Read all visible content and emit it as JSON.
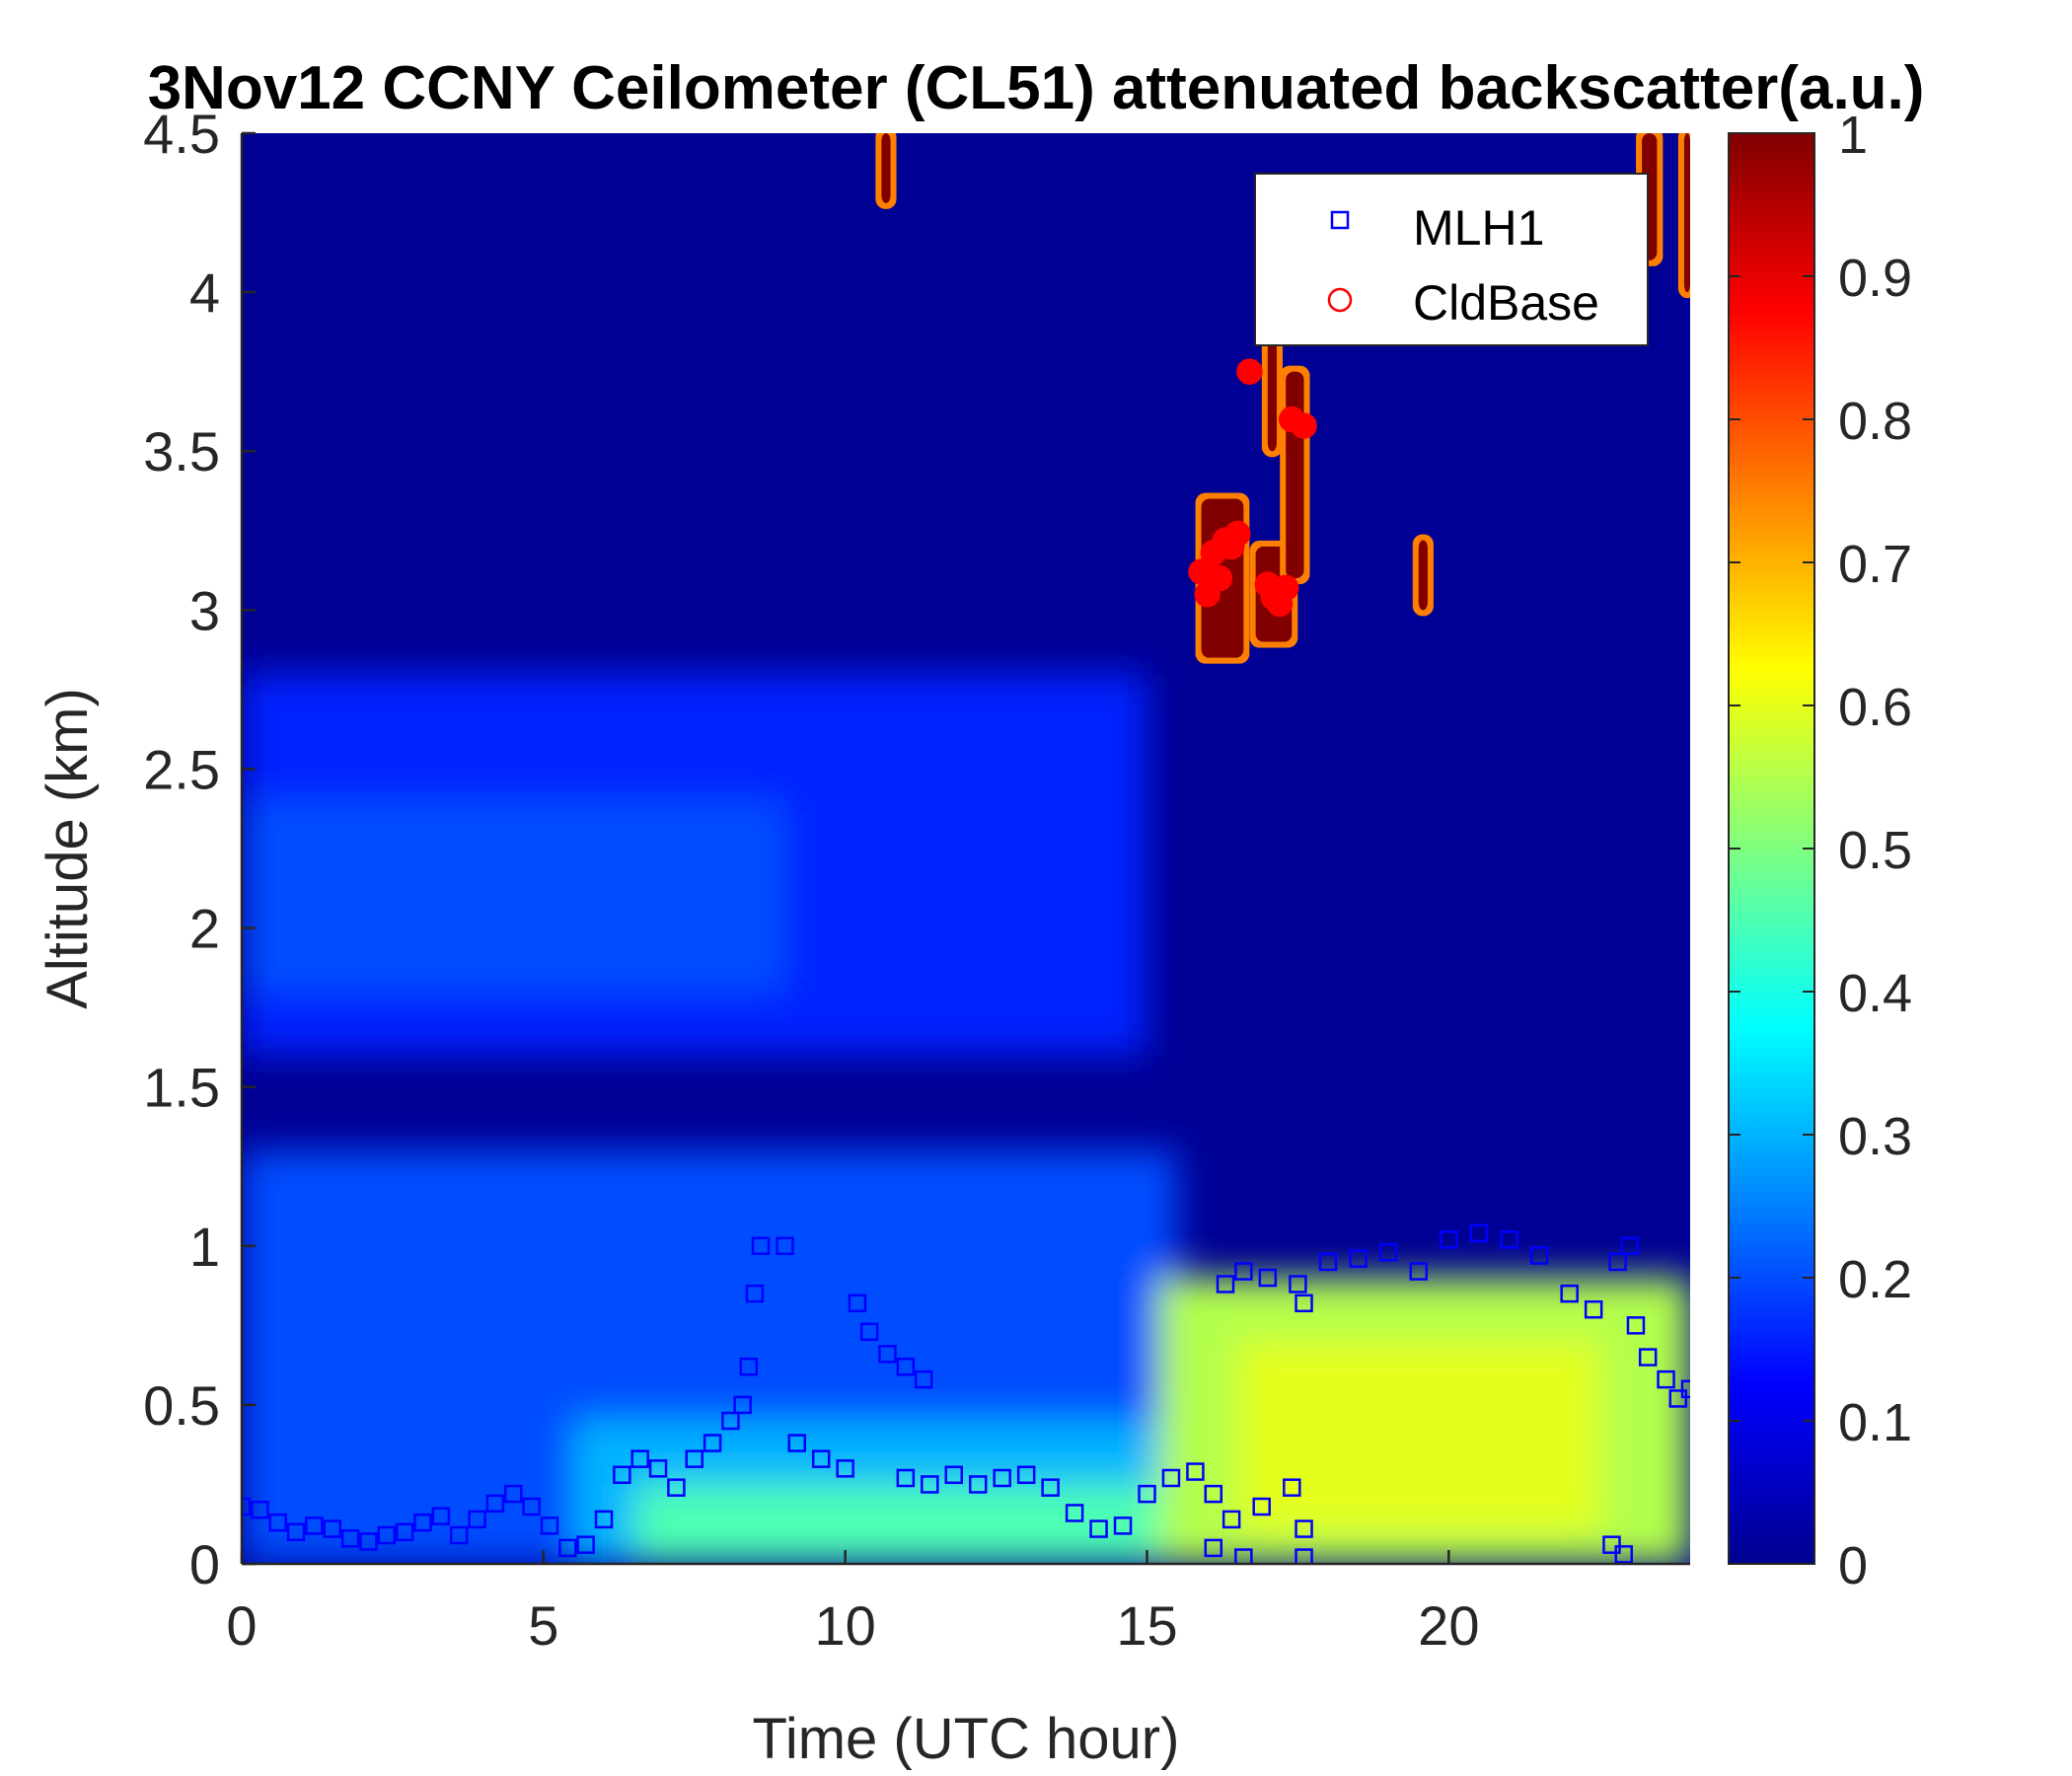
{
  "chart_data": {
    "type": "heatmap",
    "title": "3Nov12 CCNY Ceilometer (CL51) attenuated backscatter(a.u.)",
    "xlabel": "Time (UTC hour)",
    "ylabel": "Altitude (km)",
    "xlim": [
      0,
      24
    ],
    "ylim": [
      0,
      4.5
    ],
    "xticks": [
      0,
      5,
      10,
      15,
      20
    ],
    "yticks": [
      0,
      0.5,
      1,
      1.5,
      2,
      2.5,
      3,
      3.5,
      4,
      4.5
    ],
    "colorbar": {
      "colormap": "jet",
      "clim": [
        0,
        1
      ],
      "ticks": [
        0,
        0.1,
        0.2,
        0.3,
        0.4,
        0.5,
        0.6,
        0.7,
        0.8,
        0.9,
        1
      ]
    },
    "legend": {
      "placement": "top-right",
      "entries": [
        "MLH1",
        "CldBase"
      ]
    },
    "backscatter_field_description_values": {
      "low_layer_value_day": 0.55,
      "low_layer_value_night": 0.3,
      "residual_layer_value": 0.2,
      "free_troposphere_value": 0.02,
      "cloud_value": 1.0
    },
    "series": [
      {
        "name": "MLH1",
        "marker": "square",
        "color": "#0000ff",
        "points": [
          [
            0.0,
            0.18
          ],
          [
            0.3,
            0.17
          ],
          [
            0.6,
            0.13
          ],
          [
            0.9,
            0.1
          ],
          [
            1.2,
            0.12
          ],
          [
            1.5,
            0.11
          ],
          [
            1.8,
            0.08
          ],
          [
            2.1,
            0.07
          ],
          [
            2.4,
            0.09
          ],
          [
            2.7,
            0.1
          ],
          [
            3.0,
            0.13
          ],
          [
            3.3,
            0.15
          ],
          [
            3.6,
            0.09
          ],
          [
            3.9,
            0.14
          ],
          [
            4.2,
            0.19
          ],
          [
            4.5,
            0.22
          ],
          [
            4.8,
            0.18
          ],
          [
            5.1,
            0.12
          ],
          [
            5.4,
            0.05
          ],
          [
            5.7,
            0.06
          ],
          [
            6.0,
            0.14
          ],
          [
            6.3,
            0.28
          ],
          [
            6.6,
            0.33
          ],
          [
            6.9,
            0.3
          ],
          [
            7.2,
            0.24
          ],
          [
            7.5,
            0.33
          ],
          [
            7.8,
            0.38
          ],
          [
            8.1,
            0.45
          ],
          [
            8.3,
            0.5
          ],
          [
            8.4,
            0.62
          ],
          [
            8.5,
            0.85
          ],
          [
            8.6,
            1.0
          ],
          [
            9.0,
            1.0
          ],
          [
            9.2,
            0.38
          ],
          [
            9.6,
            0.33
          ],
          [
            10.0,
            0.3
          ],
          [
            10.2,
            0.82
          ],
          [
            10.4,
            0.73
          ],
          [
            10.7,
            0.66
          ],
          [
            11.0,
            0.62
          ],
          [
            11.3,
            0.58
          ],
          [
            11.0,
            0.27
          ],
          [
            11.4,
            0.25
          ],
          [
            11.8,
            0.28
          ],
          [
            12.2,
            0.25
          ],
          [
            12.6,
            0.27
          ],
          [
            13.0,
            0.28
          ],
          [
            13.4,
            0.24
          ],
          [
            13.8,
            0.16
          ],
          [
            14.2,
            0.11
          ],
          [
            14.6,
            0.12
          ],
          [
            15.0,
            0.22
          ],
          [
            15.4,
            0.27
          ],
          [
            15.8,
            0.29
          ],
          [
            16.1,
            0.22
          ],
          [
            16.1,
            0.05
          ],
          [
            16.4,
            0.14
          ],
          [
            16.6,
            0.02
          ],
          [
            16.9,
            0.18
          ],
          [
            17.4,
            0.24
          ],
          [
            17.6,
            0.11
          ],
          [
            17.6,
            0.02
          ],
          [
            16.3,
            0.88
          ],
          [
            16.6,
            0.92
          ],
          [
            17.0,
            0.9
          ],
          [
            17.5,
            0.88
          ],
          [
            17.6,
            0.82
          ],
          [
            18.0,
            0.95
          ],
          [
            18.5,
            0.96
          ],
          [
            19.0,
            0.98
          ],
          [
            19.5,
            0.92
          ],
          [
            20.0,
            1.02
          ],
          [
            20.5,
            1.04
          ],
          [
            21.0,
            1.02
          ],
          [
            21.5,
            0.97
          ],
          [
            22.0,
            0.85
          ],
          [
            22.4,
            0.8
          ],
          [
            22.8,
            0.95
          ],
          [
            23.0,
            1.0
          ],
          [
            23.1,
            0.75
          ],
          [
            23.3,
            0.65
          ],
          [
            23.6,
            0.58
          ],
          [
            23.8,
            0.52
          ],
          [
            24.0,
            0.55
          ],
          [
            22.7,
            0.06
          ],
          [
            22.9,
            0.03
          ]
        ]
      },
      {
        "name": "CldBase",
        "marker": "circle",
        "color": "#ff0000",
        "points": [
          [
            15.9,
            3.12
          ],
          [
            16.0,
            3.05
          ],
          [
            16.1,
            3.18
          ],
          [
            16.2,
            3.1
          ],
          [
            16.3,
            3.22
          ],
          [
            16.4,
            3.2
          ],
          [
            16.5,
            3.24
          ],
          [
            16.7,
            3.75
          ],
          [
            17.0,
            3.08
          ],
          [
            17.1,
            3.04
          ],
          [
            17.2,
            3.02
          ],
          [
            17.3,
            3.07
          ],
          [
            17.4,
            3.6
          ],
          [
            17.6,
            3.58
          ]
        ]
      }
    ]
  }
}
